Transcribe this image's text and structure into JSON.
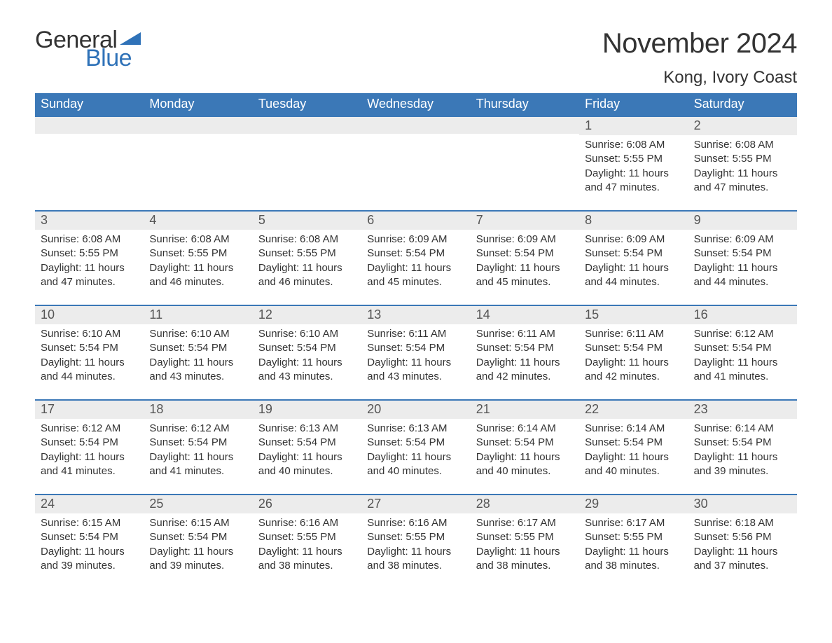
{
  "brand": {
    "text_general": "General",
    "text_blue": "Blue",
    "triangle_color": "#2f72b8"
  },
  "title": {
    "month_year": "November 2024",
    "location": "Kong, Ivory Coast"
  },
  "colors": {
    "header_bg": "#3b78b7",
    "header_text": "#ffffff",
    "daynum_bg": "#ececec",
    "row_border": "#3b78b7",
    "body_text": "#333333",
    "page_bg": "#ffffff"
  },
  "typography": {
    "month_title_fontsize": 40,
    "location_fontsize": 24,
    "dow_fontsize": 18,
    "daynum_fontsize": 18,
    "body_fontsize": 15
  },
  "layout": {
    "columns": 7,
    "weeks": 5
  },
  "days_of_week": [
    "Sunday",
    "Monday",
    "Tuesday",
    "Wednesday",
    "Thursday",
    "Friday",
    "Saturday"
  ],
  "weeks": [
    [
      {
        "empty": true
      },
      {
        "empty": true
      },
      {
        "empty": true
      },
      {
        "empty": true
      },
      {
        "empty": true
      },
      {
        "num": "1",
        "sunrise": "Sunrise: 6:08 AM",
        "sunset": "Sunset: 5:55 PM",
        "daylight": "Daylight: 11 hours and 47 minutes."
      },
      {
        "num": "2",
        "sunrise": "Sunrise: 6:08 AM",
        "sunset": "Sunset: 5:55 PM",
        "daylight": "Daylight: 11 hours and 47 minutes."
      }
    ],
    [
      {
        "num": "3",
        "sunrise": "Sunrise: 6:08 AM",
        "sunset": "Sunset: 5:55 PM",
        "daylight": "Daylight: 11 hours and 47 minutes."
      },
      {
        "num": "4",
        "sunrise": "Sunrise: 6:08 AM",
        "sunset": "Sunset: 5:55 PM",
        "daylight": "Daylight: 11 hours and 46 minutes."
      },
      {
        "num": "5",
        "sunrise": "Sunrise: 6:08 AM",
        "sunset": "Sunset: 5:55 PM",
        "daylight": "Daylight: 11 hours and 46 minutes."
      },
      {
        "num": "6",
        "sunrise": "Sunrise: 6:09 AM",
        "sunset": "Sunset: 5:54 PM",
        "daylight": "Daylight: 11 hours and 45 minutes."
      },
      {
        "num": "7",
        "sunrise": "Sunrise: 6:09 AM",
        "sunset": "Sunset: 5:54 PM",
        "daylight": "Daylight: 11 hours and 45 minutes."
      },
      {
        "num": "8",
        "sunrise": "Sunrise: 6:09 AM",
        "sunset": "Sunset: 5:54 PM",
        "daylight": "Daylight: 11 hours and 44 minutes."
      },
      {
        "num": "9",
        "sunrise": "Sunrise: 6:09 AM",
        "sunset": "Sunset: 5:54 PM",
        "daylight": "Daylight: 11 hours and 44 minutes."
      }
    ],
    [
      {
        "num": "10",
        "sunrise": "Sunrise: 6:10 AM",
        "sunset": "Sunset: 5:54 PM",
        "daylight": "Daylight: 11 hours and 44 minutes."
      },
      {
        "num": "11",
        "sunrise": "Sunrise: 6:10 AM",
        "sunset": "Sunset: 5:54 PM",
        "daylight": "Daylight: 11 hours and 43 minutes."
      },
      {
        "num": "12",
        "sunrise": "Sunrise: 6:10 AM",
        "sunset": "Sunset: 5:54 PM",
        "daylight": "Daylight: 11 hours and 43 minutes."
      },
      {
        "num": "13",
        "sunrise": "Sunrise: 6:11 AM",
        "sunset": "Sunset: 5:54 PM",
        "daylight": "Daylight: 11 hours and 43 minutes."
      },
      {
        "num": "14",
        "sunrise": "Sunrise: 6:11 AM",
        "sunset": "Sunset: 5:54 PM",
        "daylight": "Daylight: 11 hours and 42 minutes."
      },
      {
        "num": "15",
        "sunrise": "Sunrise: 6:11 AM",
        "sunset": "Sunset: 5:54 PM",
        "daylight": "Daylight: 11 hours and 42 minutes."
      },
      {
        "num": "16",
        "sunrise": "Sunrise: 6:12 AM",
        "sunset": "Sunset: 5:54 PM",
        "daylight": "Daylight: 11 hours and 41 minutes."
      }
    ],
    [
      {
        "num": "17",
        "sunrise": "Sunrise: 6:12 AM",
        "sunset": "Sunset: 5:54 PM",
        "daylight": "Daylight: 11 hours and 41 minutes."
      },
      {
        "num": "18",
        "sunrise": "Sunrise: 6:12 AM",
        "sunset": "Sunset: 5:54 PM",
        "daylight": "Daylight: 11 hours and 41 minutes."
      },
      {
        "num": "19",
        "sunrise": "Sunrise: 6:13 AM",
        "sunset": "Sunset: 5:54 PM",
        "daylight": "Daylight: 11 hours and 40 minutes."
      },
      {
        "num": "20",
        "sunrise": "Sunrise: 6:13 AM",
        "sunset": "Sunset: 5:54 PM",
        "daylight": "Daylight: 11 hours and 40 minutes."
      },
      {
        "num": "21",
        "sunrise": "Sunrise: 6:14 AM",
        "sunset": "Sunset: 5:54 PM",
        "daylight": "Daylight: 11 hours and 40 minutes."
      },
      {
        "num": "22",
        "sunrise": "Sunrise: 6:14 AM",
        "sunset": "Sunset: 5:54 PM",
        "daylight": "Daylight: 11 hours and 40 minutes."
      },
      {
        "num": "23",
        "sunrise": "Sunrise: 6:14 AM",
        "sunset": "Sunset: 5:54 PM",
        "daylight": "Daylight: 11 hours and 39 minutes."
      }
    ],
    [
      {
        "num": "24",
        "sunrise": "Sunrise: 6:15 AM",
        "sunset": "Sunset: 5:54 PM",
        "daylight": "Daylight: 11 hours and 39 minutes."
      },
      {
        "num": "25",
        "sunrise": "Sunrise: 6:15 AM",
        "sunset": "Sunset: 5:54 PM",
        "daylight": "Daylight: 11 hours and 39 minutes."
      },
      {
        "num": "26",
        "sunrise": "Sunrise: 6:16 AM",
        "sunset": "Sunset: 5:55 PM",
        "daylight": "Daylight: 11 hours and 38 minutes."
      },
      {
        "num": "27",
        "sunrise": "Sunrise: 6:16 AM",
        "sunset": "Sunset: 5:55 PM",
        "daylight": "Daylight: 11 hours and 38 minutes."
      },
      {
        "num": "28",
        "sunrise": "Sunrise: 6:17 AM",
        "sunset": "Sunset: 5:55 PM",
        "daylight": "Daylight: 11 hours and 38 minutes."
      },
      {
        "num": "29",
        "sunrise": "Sunrise: 6:17 AM",
        "sunset": "Sunset: 5:55 PM",
        "daylight": "Daylight: 11 hours and 38 minutes."
      },
      {
        "num": "30",
        "sunrise": "Sunrise: 6:18 AM",
        "sunset": "Sunset: 5:56 PM",
        "daylight": "Daylight: 11 hours and 37 minutes."
      }
    ]
  ]
}
